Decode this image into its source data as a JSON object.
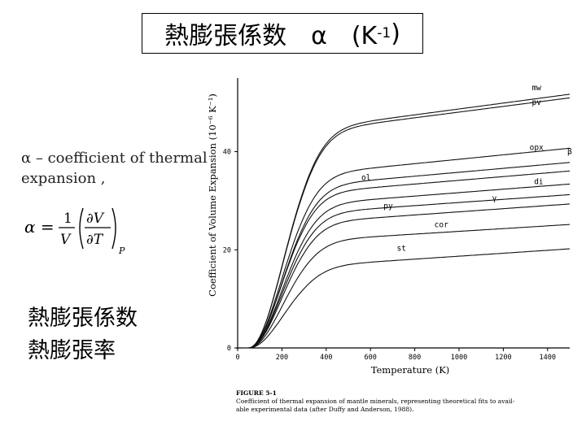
{
  "slide": {
    "title": "熱膨張係数　α　(K",
    "title_sup": "-1",
    "title_close": ")",
    "definition_line1": "α – coefficient of thermal",
    "definition_line2": "expansion ,",
    "formula": {
      "lhs": "α =",
      "num": "1",
      "den": "V",
      "pnum": "∂V",
      "pden": "∂T",
      "sub": "P"
    },
    "jp_terms": [
      "熱膨張係数",
      "熱膨張率"
    ]
  },
  "figure": {
    "caption_title": "FIGURE 5-1",
    "caption_line1": "Coefficient of thermal expansion of mantle minerals, representing theoretical fits to avail-",
    "caption_line2": "able experimental data (after Duffy and Anderson, 1988)."
  },
  "chart_data": {
    "type": "line",
    "xlabel": "Temperature (K)",
    "ylabel": "Coefficient of Volume Expansion (10⁻⁶ K⁻¹)",
    "xlim": [
      0,
      1500
    ],
    "ylim": [
      0,
      55
    ],
    "xticks": [
      0,
      200,
      400,
      600,
      800,
      1000,
      1200,
      1400
    ],
    "yticks": [
      0,
      20,
      40
    ],
    "series": [
      {
        "name": "mw",
        "onset": 50,
        "scale": 240,
        "plateau": 44.5,
        "slope": 0.006
      },
      {
        "name": "pv",
        "onset": 50,
        "scale": 240,
        "plateau": 44.0,
        "slope": 0.0058
      },
      {
        "name": "opx",
        "onset": 50,
        "scale": 230,
        "plateau": 35.3,
        "slope": 0.0045
      },
      {
        "name": "β",
        "onset": 50,
        "scale": 230,
        "plateau": 33.0,
        "slope": 0.004
      },
      {
        "name": "ol",
        "onset": 50,
        "scale": 225,
        "plateau": 31.5,
        "slope": 0.0038
      },
      {
        "name": "di",
        "onset": 50,
        "scale": 230,
        "plateau": 29.2,
        "slope": 0.0035
      },
      {
        "name": "py",
        "onset": 50,
        "scale": 230,
        "plateau": 27.4,
        "slope": 0.0032
      },
      {
        "name": "γ",
        "onset": 50,
        "scale": 230,
        "plateau": 25.5,
        "slope": 0.0032
      },
      {
        "name": "cor",
        "onset": 50,
        "scale": 235,
        "plateau": 21.8,
        "slope": 0.0028
      },
      {
        "name": "st",
        "onset": 50,
        "scale": 240,
        "plateau": 16.6,
        "slope": 0.003
      }
    ],
    "annotations": [
      {
        "text": "mw",
        "x": 1350,
        "y": 52.5
      },
      {
        "text": "pv",
        "x": 1350,
        "y": 49.5
      },
      {
        "text": "opx",
        "x": 1350,
        "y": 40.3
      },
      {
        "text": "β",
        "x": 1500,
        "y": 39.5
      },
      {
        "text": "ol",
        "x": 580,
        "y": 34.2
      },
      {
        "text": "di",
        "x": 1360,
        "y": 33.4
      },
      {
        "text": "γ",
        "x": 1160,
        "y": 30.0
      },
      {
        "text": "py",
        "x": 680,
        "y": 28.4
      },
      {
        "text": "cor",
        "x": 920,
        "y": 24.6
      },
      {
        "text": "st",
        "x": 740,
        "y": 19.8
      }
    ]
  }
}
